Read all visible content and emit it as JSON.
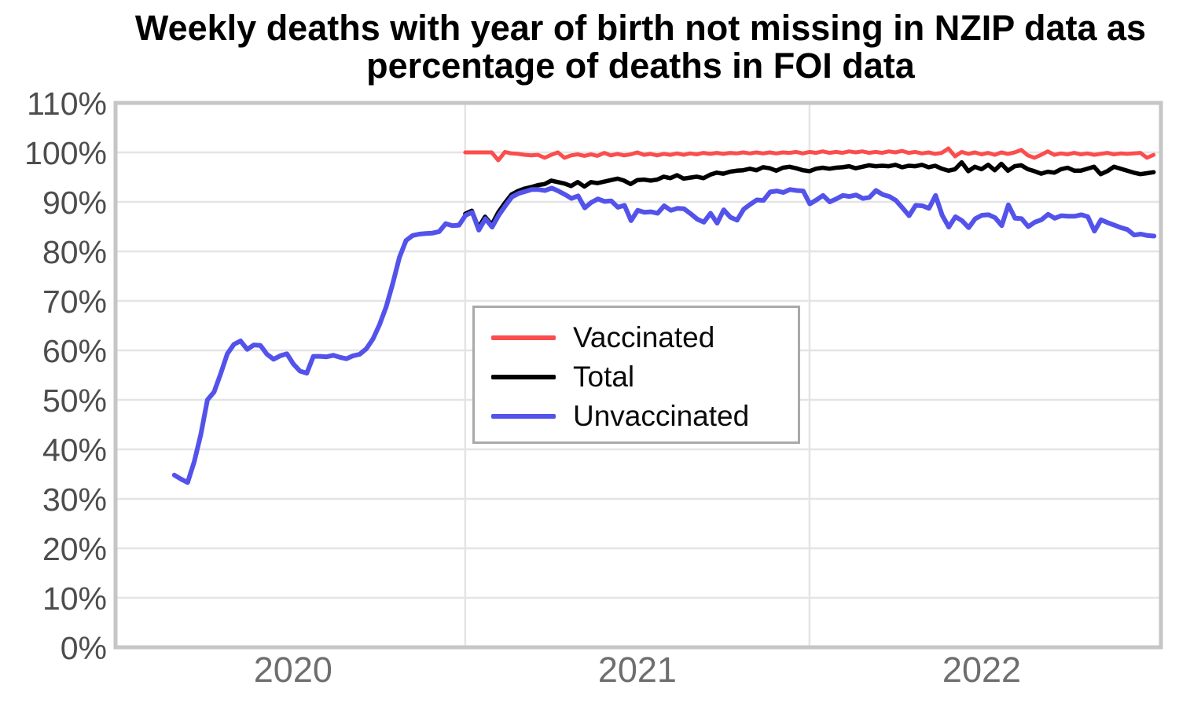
{
  "chart_data": {
    "type": "line",
    "title": "Weekly deaths with year of birth not missing in NZIP data as percentage of deaths in FOI data",
    "x_axis": {
      "range": [
        2019.9845,
        2023.0205
      ],
      "ticks": [
        2020.5,
        2021.5,
        2022.5
      ],
      "tick_labels": [
        "2020",
        "2021",
        "2022"
      ],
      "gridlines": [
        2021,
        2022
      ],
      "tick_label_color": "#6e6e6e"
    },
    "y_axis": {
      "range": [
        0,
        110
      ],
      "tick_values": [
        0,
        10,
        20,
        30,
        40,
        50,
        60,
        70,
        80,
        90,
        100,
        110
      ],
      "tick_labels": [
        "0%",
        "10%",
        "20%",
        "30%",
        "40%",
        "50%",
        "60%",
        "70%",
        "80%",
        "90%",
        "100%",
        "110%"
      ],
      "unit": "%",
      "tick_label_color": "#4d4d4d"
    },
    "grid": {
      "color": "#e4e4e4",
      "border_color": "#c6c6c6"
    },
    "legend": {
      "position": "center",
      "items": [
        {
          "label": "Vaccinated",
          "color": "#fb4d4d"
        },
        {
          "label": "Total",
          "color": "#000000"
        },
        {
          "label": "Unvaccinated",
          "color": "#5353eb"
        }
      ]
    },
    "series": [
      {
        "name": "Vaccinated",
        "color": "#fb4d4d",
        "width": 5,
        "start_year": 2021.0,
        "step_years": 0.019224,
        "values": [
          100.0,
          100.0,
          100.0,
          100.0,
          100.0,
          98.4,
          100.1,
          99.8,
          99.7,
          99.5,
          99.4,
          99.5,
          98.9,
          99.5,
          100.0,
          98.9,
          99.4,
          99.6,
          99.3,
          99.6,
          99.3,
          99.9,
          99.4,
          99.7,
          99.4,
          99.6,
          100.0,
          99.5,
          99.7,
          99.4,
          99.7,
          99.5,
          99.8,
          99.5,
          99.8,
          99.6,
          99.9,
          99.7,
          99.9,
          99.7,
          99.9,
          99.8,
          100.0,
          99.8,
          100.0,
          99.8,
          100.0,
          99.8,
          100.0,
          99.9,
          100.1,
          99.8,
          100.1,
          99.9,
          100.2,
          99.9,
          100.1,
          99.9,
          100.2,
          100.0,
          100.2,
          99.9,
          100.1,
          99.9,
          100.2,
          100.0,
          100.3,
          99.9,
          100.1,
          99.8,
          100.0,
          99.7,
          99.9,
          100.8,
          99.2,
          100.1,
          99.7,
          100.0,
          99.6,
          99.9,
          99.5,
          100.0,
          99.7,
          100.0,
          100.5,
          99.4,
          98.9,
          99.5,
          100.2,
          99.5,
          99.8,
          99.6,
          99.9,
          99.6,
          99.8,
          99.5,
          99.7,
          99.9,
          99.6,
          99.8,
          99.7,
          99.8,
          99.9,
          98.9,
          99.5
        ]
      },
      {
        "name": "Total",
        "color": "#000000",
        "width": 5.5,
        "start_year": 2021.0,
        "step_years": 0.019224,
        "values": [
          87.6,
          88.2,
          84.8,
          87.0,
          85.4,
          87.9,
          89.8,
          91.5,
          92.2,
          92.7,
          93.0,
          93.4,
          93.6,
          94.3,
          94.0,
          93.7,
          93.2,
          94.0,
          93.1,
          94.0,
          93.8,
          94.1,
          94.4,
          94.7,
          94.3,
          93.6,
          94.4,
          94.5,
          94.3,
          94.5,
          95.1,
          94.8,
          95.4,
          94.7,
          94.9,
          95.1,
          94.8,
          95.5,
          95.9,
          95.7,
          96.1,
          96.3,
          96.4,
          96.7,
          96.4,
          97.0,
          96.8,
          96.3,
          96.9,
          97.1,
          96.8,
          96.4,
          96.2,
          96.7,
          96.9,
          96.7,
          96.9,
          97.0,
          97.2,
          96.8,
          97.1,
          97.4,
          97.2,
          97.3,
          97.2,
          97.5,
          97.0,
          97.3,
          97.2,
          97.5,
          97.0,
          97.3,
          96.7,
          96.3,
          96.6,
          98.0,
          96.2,
          97.1,
          96.6,
          97.5,
          96.4,
          97.7,
          96.3,
          97.2,
          97.4,
          96.6,
          96.2,
          95.7,
          96.1,
          95.9,
          96.6,
          96.9,
          96.3,
          96.3,
          96.7,
          97.1,
          95.6,
          96.2,
          97.1,
          96.7,
          96.3,
          95.9,
          95.6,
          95.8,
          96.0
        ]
      },
      {
        "name": "Unvaccinated",
        "color": "#5353eb",
        "width": 6,
        "start_year": 2020.1553,
        "step_years": 0.019224,
        "values": [
          34.8,
          34.0,
          33.3,
          37.5,
          43.0,
          50.0,
          51.6,
          55.3,
          59.3,
          61.2,
          61.9,
          60.2,
          61.1,
          61.0,
          59.2,
          58.2,
          58.9,
          59.3,
          57.2,
          55.8,
          55.4,
          58.8,
          58.8,
          58.7,
          59.0,
          58.6,
          58.3,
          58.9,
          59.2,
          60.3,
          62.3,
          65.2,
          68.8,
          73.5,
          78.8,
          82.2,
          83.2,
          83.5,
          83.6,
          83.7,
          84.0,
          85.6,
          85.2,
          85.3,
          87.3,
          87.9,
          84.3,
          86.6,
          84.9,
          87.3,
          89.2,
          91.0,
          91.7,
          92.1,
          92.5,
          92.5,
          92.3,
          92.8,
          92.2,
          91.5,
          90.7,
          91.2,
          88.8,
          89.9,
          90.6,
          90.1,
          90.2,
          88.9,
          89.3,
          86.2,
          88.3,
          87.9,
          88.0,
          87.7,
          89.2,
          88.3,
          88.7,
          88.6,
          87.6,
          86.5,
          85.9,
          87.7,
          85.7,
          88.4,
          86.9,
          86.3,
          88.5,
          89.5,
          90.4,
          90.3,
          92.0,
          92.2,
          91.9,
          92.5,
          92.3,
          92.2,
          89.6,
          90.4,
          91.3,
          90.0,
          90.6,
          91.3,
          91.1,
          91.4,
          90.7,
          90.9,
          92.3,
          91.5,
          91.1,
          90.3,
          88.8,
          87.2,
          89.3,
          89.2,
          88.7,
          91.3,
          87.3,
          84.9,
          87.0,
          86.2,
          84.8,
          86.6,
          87.3,
          87.4,
          86.8,
          85.2,
          89.4,
          86.7,
          86.6,
          85.0,
          85.9,
          86.4,
          87.5,
          86.7,
          87.2,
          87.1,
          87.1,
          87.4,
          87.0,
          84.1,
          86.4,
          85.8,
          85.3,
          84.8,
          84.4,
          83.3,
          83.5,
          83.2,
          83.1
        ]
      }
    ]
  }
}
